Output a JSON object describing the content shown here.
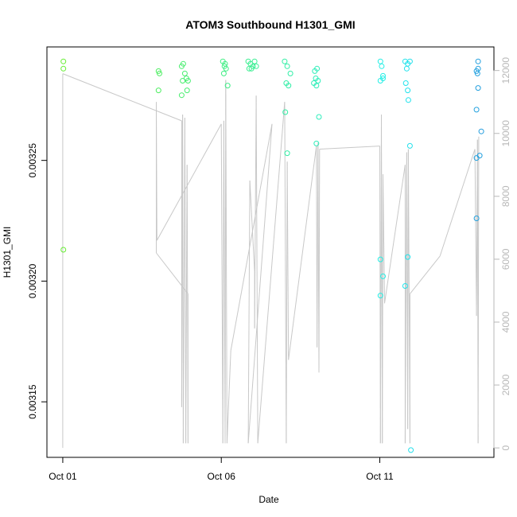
{
  "chart_data": {
    "type": "scatter",
    "title": "ATOM3 Southbound H1301_GMI",
    "xlabel": "Date",
    "ylabel": "H1301_GMI",
    "x_ticks": [
      "Oct 01",
      "Oct 06",
      "Oct 11"
    ],
    "x_tick_days": [
      1,
      6,
      11
    ],
    "xlim": [
      0.5,
      14.6
    ],
    "y_ticks": [
      "0.00315",
      "0.00320",
      "0.00325"
    ],
    "y_tick_values": [
      0.00315,
      0.0032,
      0.00325
    ],
    "ylim": [
      0.003127,
      0.003297
    ],
    "y2_ticks": [
      "0",
      "2000",
      "4000",
      "6000",
      "8000",
      "10000",
      "12000"
    ],
    "y2_tick_values": [
      0,
      2000,
      4000,
      6000,
      8000,
      10000,
      12000
    ],
    "y2lim": [
      -300,
      12750
    ],
    "grid": false,
    "legend": "none",
    "colors": {
      "points_start": "#66ee33",
      "points_mid": "#33ee99",
      "points_cyan": "#22eeee",
      "points_end": "#2299dd",
      "altitude_line": "#c8c8c8",
      "right_axis": "#b8b8b8"
    },
    "series": [
      {
        "type": "scatter",
        "x_unit": "day of October",
        "points": [
          [
            1.02,
            0.003291
          ],
          [
            1.02,
            0.003288
          ],
          [
            1.02,
            0.003213
          ],
          [
            4.02,
            0.003287
          ],
          [
            4.05,
            0.003286
          ],
          [
            4.02,
            0.003279
          ],
          [
            4.75,
            0.003289
          ],
          [
            4.8,
            0.00329
          ],
          [
            4.85,
            0.003286
          ],
          [
            4.9,
            0.003284
          ],
          [
            4.78,
            0.003283
          ],
          [
            4.95,
            0.003283
          ],
          [
            4.75,
            0.003277
          ],
          [
            4.92,
            0.003279
          ],
          [
            6.05,
            0.003291
          ],
          [
            6.1,
            0.003289
          ],
          [
            6.15,
            0.003288
          ],
          [
            6.08,
            0.003286
          ],
          [
            6.2,
            0.003281
          ],
          [
            6.12,
            0.00329
          ],
          [
            6.85,
            0.003291
          ],
          [
            6.92,
            0.00329
          ],
          [
            7.0,
            0.003289
          ],
          [
            6.95,
            0.003288
          ],
          [
            7.05,
            0.003291
          ],
          [
            7.1,
            0.003289
          ],
          [
            6.88,
            0.003288
          ],
          [
            8.0,
            0.003291
          ],
          [
            8.08,
            0.003289
          ],
          [
            8.18,
            0.003286
          ],
          [
            8.05,
            0.003282
          ],
          [
            8.12,
            0.003281
          ],
          [
            8.02,
            0.00327
          ],
          [
            8.08,
            0.003253
          ],
          [
            8.95,
            0.003287
          ],
          [
            9.02,
            0.003288
          ],
          [
            8.98,
            0.003284
          ],
          [
            9.05,
            0.003283
          ],
          [
            8.92,
            0.003282
          ],
          [
            9.0,
            0.003281
          ],
          [
            9.08,
            0.003268
          ],
          [
            9.0,
            0.003257
          ],
          [
            11.02,
            0.003291
          ],
          [
            11.06,
            0.003289
          ],
          [
            11.1,
            0.003285
          ],
          [
            11.02,
            0.003283
          ],
          [
            11.1,
            0.003284
          ],
          [
            11.02,
            0.003209
          ],
          [
            11.1,
            0.003202
          ],
          [
            11.02,
            0.003194
          ],
          [
            11.8,
            0.003291
          ],
          [
            11.88,
            0.00329
          ],
          [
            11.95,
            0.003291
          ],
          [
            11.85,
            0.003288
          ],
          [
            11.82,
            0.003282
          ],
          [
            11.88,
            0.003279
          ],
          [
            11.9,
            0.003275
          ],
          [
            11.95,
            0.003256
          ],
          [
            11.88,
            0.00321
          ],
          [
            11.8,
            0.003198
          ],
          [
            11.98,
            0.00313
          ],
          [
            14.1,
            0.003291
          ],
          [
            14.1,
            0.003288
          ],
          [
            14.05,
            0.003287
          ],
          [
            14.08,
            0.003286
          ],
          [
            14.1,
            0.00328
          ],
          [
            14.05,
            0.003271
          ],
          [
            14.2,
            0.003262
          ],
          [
            14.05,
            0.003251
          ],
          [
            14.15,
            0.003252
          ],
          [
            14.05,
            0.003226
          ]
        ]
      },
      {
        "type": "line",
        "axis": "right",
        "x_unit": "day of October",
        "points": [
          [
            1.0,
            0
          ],
          [
            1.0,
            11900
          ],
          [
            4.75,
            10400
          ],
          [
            4.75,
            1300
          ],
          [
            4.78,
            10600
          ],
          [
            4.8,
            150
          ],
          [
            4.85,
            10500
          ],
          [
            4.88,
            150
          ],
          [
            4.92,
            9000
          ],
          [
            4.95,
            150
          ],
          [
            4.95,
            4900
          ],
          [
            3.95,
            6200
          ],
          [
            3.95,
            11000
          ],
          [
            3.97,
            6600
          ],
          [
            6.0,
            10300
          ],
          [
            6.05,
            150
          ],
          [
            6.08,
            10400
          ],
          [
            6.12,
            150
          ],
          [
            6.14,
            11700
          ],
          [
            6.18,
            150
          ],
          [
            6.3,
            3100
          ],
          [
            7.6,
            10300
          ],
          [
            6.85,
            150
          ],
          [
            6.9,
            8500
          ],
          [
            7.05,
            5600
          ],
          [
            7.05,
            3800
          ],
          [
            7.1,
            11200
          ],
          [
            7.15,
            150
          ],
          [
            8.0,
            11000
          ],
          [
            8.05,
            150
          ],
          [
            8.08,
            9100
          ],
          [
            8.12,
            2800
          ],
          [
            9.0,
            9600
          ],
          [
            9.02,
            3200
          ],
          [
            9.05,
            9700
          ],
          [
            9.08,
            2400
          ],
          [
            9.1,
            9500
          ],
          [
            11.0,
            9600
          ],
          [
            11.02,
            150
          ],
          [
            11.05,
            10600
          ],
          [
            11.08,
            150
          ],
          [
            11.1,
            8700
          ],
          [
            11.15,
            4600
          ],
          [
            11.8,
            9000
          ],
          [
            11.8,
            150
          ],
          [
            11.85,
            9400
          ],
          [
            11.88,
            600
          ],
          [
            11.9,
            9500
          ],
          [
            11.95,
            150
          ],
          [
            11.95,
            4900
          ],
          [
            12.9,
            6100
          ],
          [
            14.0,
            9500
          ],
          [
            14.05,
            4200
          ],
          [
            14.08,
            9800
          ],
          [
            14.1,
            150
          ],
          [
            14.12,
            9900
          ]
        ]
      }
    ]
  }
}
